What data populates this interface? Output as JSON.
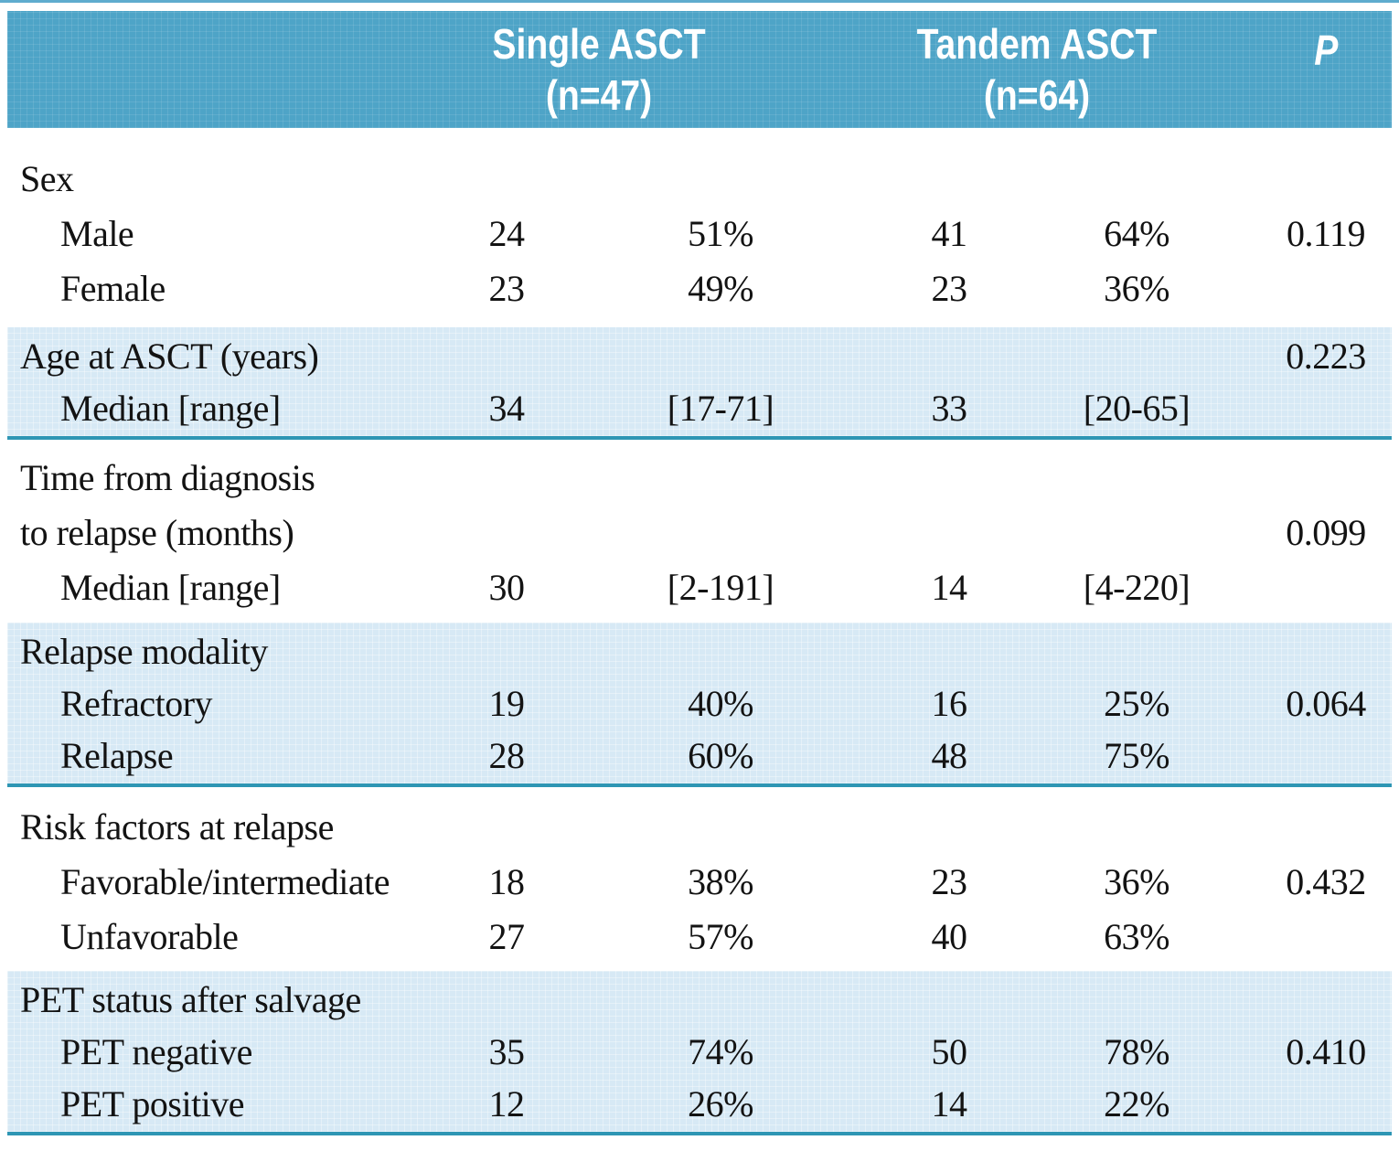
{
  "header": {
    "single_asct": {
      "name": "Single ASCT",
      "n": "(n=47)"
    },
    "tandem_asct": {
      "name": "Tandem ASCT",
      "n": "(n=64)"
    },
    "p_label": "P"
  },
  "sections": [
    {
      "name": "sex",
      "shaded": false,
      "rows": [
        {
          "label": "Sex"
        },
        {
          "label": "Male",
          "indent": true,
          "n1": "24",
          "p1": "51%",
          "n2": "41",
          "p2": "64%",
          "p": "0.119"
        },
        {
          "label": "Female",
          "indent": true,
          "n1": "23",
          "p1": "49%",
          "n2": "23",
          "p2": "36%"
        }
      ]
    },
    {
      "name": "age-at-asct",
      "shaded": true,
      "rows": [
        {
          "label": "Age at ASCT (years)",
          "p": "0.223"
        },
        {
          "label": "Median [range]",
          "indent": true,
          "n1": "34",
          "p1": "[17-71]",
          "n2": "33",
          "p2": "[20-65]"
        }
      ]
    },
    {
      "name": "time-to-relapse",
      "shaded": false,
      "rows": [
        {
          "label": "Time from diagnosis"
        },
        {
          "label": "to relapse (months)",
          "p": "0.099"
        },
        {
          "label": "Median [range]",
          "indent": true,
          "n1": "30",
          "p1": "[2-191]",
          "n2": "14",
          "p2": "[4-220]"
        }
      ]
    },
    {
      "name": "relapse-modality",
      "shaded": true,
      "rows": [
        {
          "label": "Relapse modality"
        },
        {
          "label": "Refractory",
          "indent": true,
          "n1": "19",
          "p1": "40%",
          "n2": "16",
          "p2": "25%",
          "p": "0.064"
        },
        {
          "label": "Relapse",
          "indent": true,
          "n1": "28",
          "p1": "60%",
          "n2": "48",
          "p2": "75%"
        }
      ]
    },
    {
      "name": "risk-factors",
      "shaded": false,
      "rows": [
        {
          "label": "Risk factors at relapse"
        },
        {
          "label": "Favorable/intermediate",
          "indent": true,
          "n1": "18",
          "p1": "38%",
          "n2": "23",
          "p2": "36%",
          "p": "0.432"
        },
        {
          "label": "Unfavorable",
          "indent": true,
          "n1": "27",
          "p1": "57%",
          "n2": "40",
          "p2": "63%"
        }
      ]
    },
    {
      "name": "pet-status",
      "shaded": true,
      "rows": [
        {
          "label": "PET status after salvage"
        },
        {
          "label": "PET negative",
          "indent": true,
          "n1": "35",
          "p1": "74%",
          "n2": "50",
          "p2": "78%",
          "p": "0.410"
        },
        {
          "label": "PET positive",
          "indent": true,
          "n1": "12",
          "p1": "26%",
          "n2": "14",
          "p2": "22%"
        }
      ]
    }
  ],
  "colors": {
    "header_bg": "#4EA4C7",
    "band_bg": "#D7E9F5",
    "rule": "#2E96B4",
    "topline": "#5FACCE",
    "text": "#131313",
    "header_text": "#FFFFFF"
  }
}
